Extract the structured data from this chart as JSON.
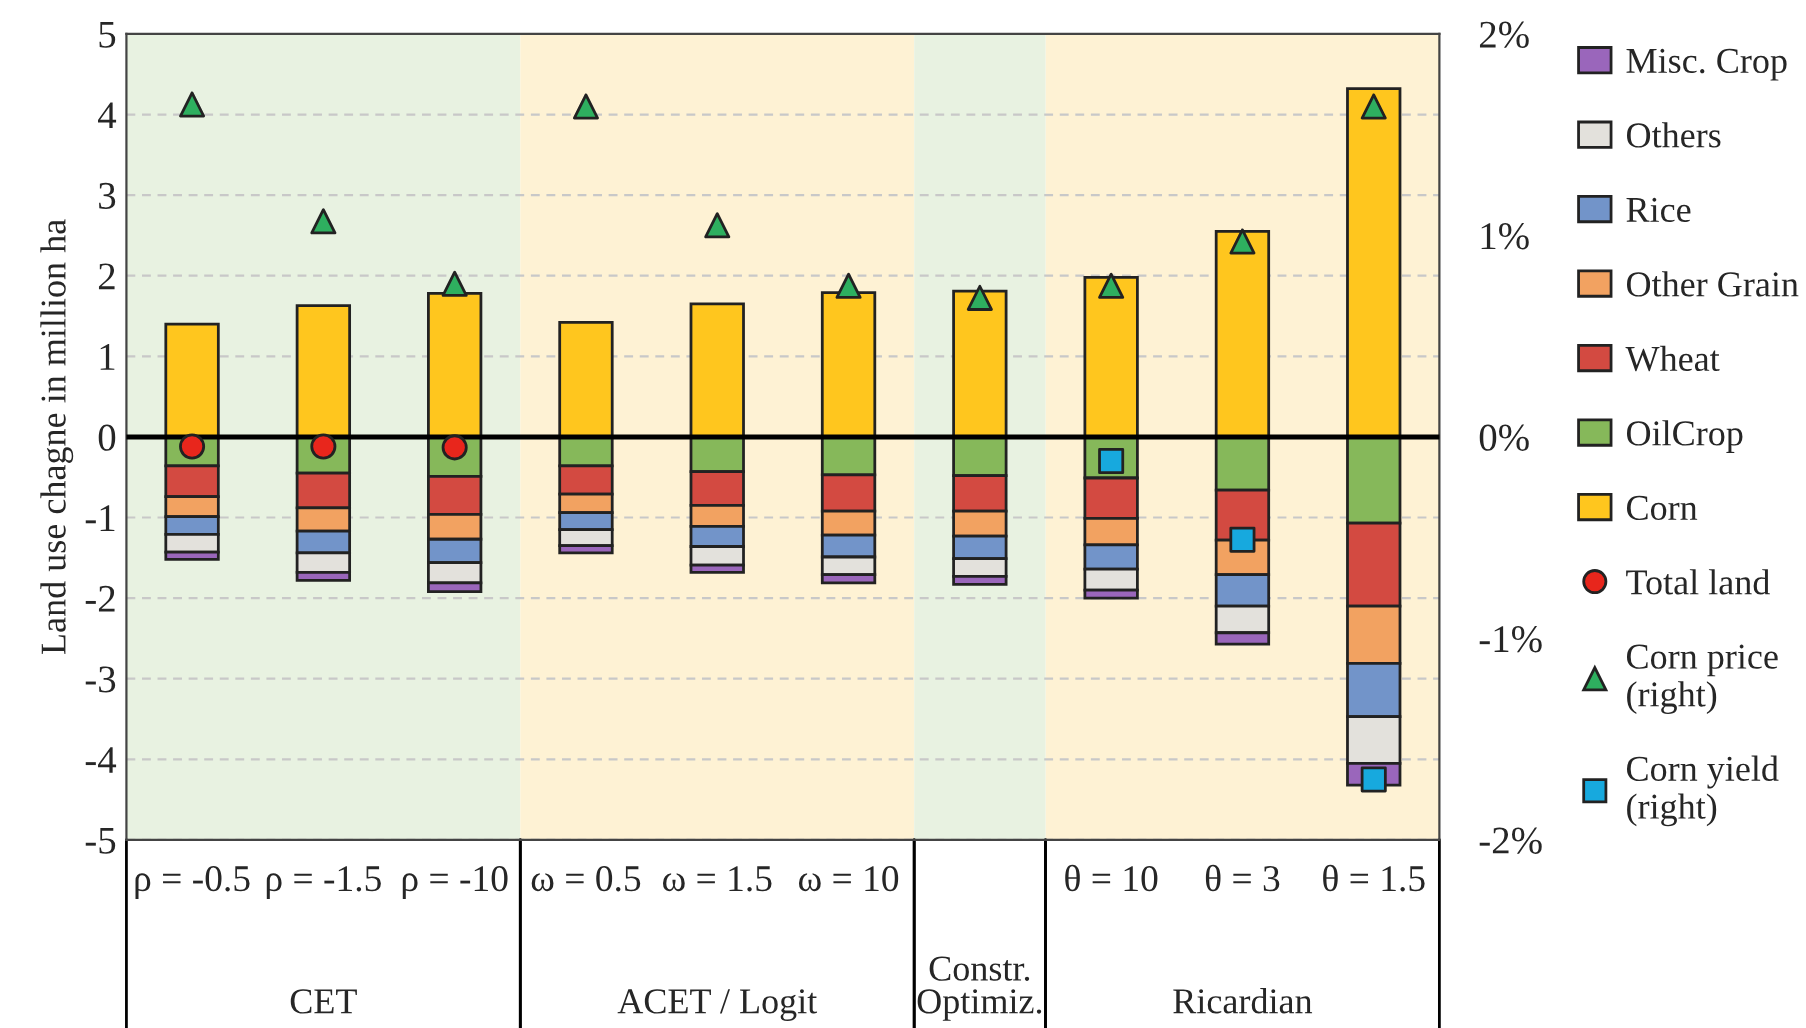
{
  "chart_data": {
    "type": "bar",
    "stacked": true,
    "ylabel": "Land use chagne in million ha",
    "categories": [
      "ρ = -0.5",
      "ρ = -1.5",
      "ρ = -10",
      "ω = 0.5",
      "ω = 1.5",
      "ω = 10",
      null,
      "θ = 10",
      "θ = 3",
      "θ = 1.5"
    ],
    "series": [
      {
        "name": "Corn",
        "color": "#ffc61e",
        "values": [
          1.4,
          1.63,
          1.78,
          1.42,
          1.65,
          1.79,
          1.81,
          1.98,
          2.55,
          4.32
        ]
      },
      {
        "name": "OilCrop",
        "color": "#86b85a",
        "values": [
          -0.36,
          -0.45,
          -0.49,
          -0.36,
          -0.43,
          -0.47,
          -0.48,
          -0.51,
          -0.66,
          -1.07
        ]
      },
      {
        "name": "Wheat",
        "color": "#d34a41",
        "values": [
          -0.38,
          -0.43,
          -0.47,
          -0.35,
          -0.42,
          -0.45,
          -0.44,
          -0.5,
          -0.62,
          -1.03
        ]
      },
      {
        "name": "Other Grain",
        "color": "#f2a261",
        "values": [
          -0.25,
          -0.29,
          -0.31,
          -0.23,
          -0.26,
          -0.3,
          -0.31,
          -0.33,
          -0.43,
          -0.71
        ]
      },
      {
        "name": "Rice",
        "color": "#7294c9",
        "values": [
          -0.22,
          -0.27,
          -0.29,
          -0.21,
          -0.25,
          -0.27,
          -0.28,
          -0.3,
          -0.39,
          -0.66
        ]
      },
      {
        "name": "Others",
        "color": "#e3e1dc",
        "values": [
          -0.22,
          -0.24,
          -0.25,
          -0.2,
          -0.23,
          -0.22,
          -0.22,
          -0.26,
          -0.33,
          -0.58
        ]
      },
      {
        "name": "Misc. Crop",
        "color": "#9a66bb",
        "values": [
          -0.09,
          -0.1,
          -0.11,
          -0.09,
          -0.09,
          -0.1,
          -0.1,
          -0.1,
          -0.14,
          -0.27
        ]
      },
      {
        "name": "Total land",
        "type": "scatter",
        "marker": "circle",
        "color": "#e8261c",
        "values": [
          -0.12,
          -0.12,
          -0.13,
          null,
          null,
          null,
          null,
          null,
          null,
          null
        ]
      },
      {
        "name": "Corn price\n(right)",
        "type": "scatter",
        "marker": "triangle",
        "axis": "y2",
        "color": "#2eaf5f",
        "values": [
          1.65,
          1.07,
          0.76,
          1.64,
          1.05,
          0.75,
          0.69,
          0.75,
          0.97,
          1.64
        ]
      },
      {
        "name": "Corn yield\n(right)",
        "type": "scatter",
        "marker": "square",
        "axis": "y2",
        "color": "#17a9de",
        "values": [
          null,
          null,
          null,
          null,
          null,
          null,
          null,
          -0.12,
          -0.51,
          -1.7
        ]
      }
    ],
    "ylim": [
      -5,
      5
    ],
    "yticks": [
      -5,
      -4,
      -3,
      -2,
      -1,
      0,
      1,
      2,
      3,
      4,
      5
    ],
    "y2lim": [
      -2,
      2
    ],
    "y2ticks": [
      {
        "value": -2,
        "label": "-2%"
      },
      {
        "value": -1,
        "label": "-1%"
      },
      {
        "value": 0,
        "label": "0%"
      },
      {
        "value": 1,
        "label": "1%"
      },
      {
        "value": 2,
        "label": "2%"
      }
    ],
    "ref_lines": [
      {
        "axis": "y",
        "value": 0,
        "color": "#000000"
      }
    ],
    "bands": [
      {
        "axis": "x",
        "from": "ρ = -0.5",
        "to": "ρ = -10",
        "color": "#e8f2e1"
      },
      {
        "axis": "x",
        "from": "ω = 0.5",
        "to": "ω = 10",
        "color": "#fef2d4"
      },
      {
        "axis": "x",
        "from": "θ = 10",
        "to": "θ = 1.5",
        "color": "#fef2d4"
      }
    ],
    "annotations": [
      "CET",
      "ACET / Logit",
      "Constr.\nOptimiz.",
      "Ricardian"
    ],
    "grid": "y",
    "legend": "right"
  }
}
